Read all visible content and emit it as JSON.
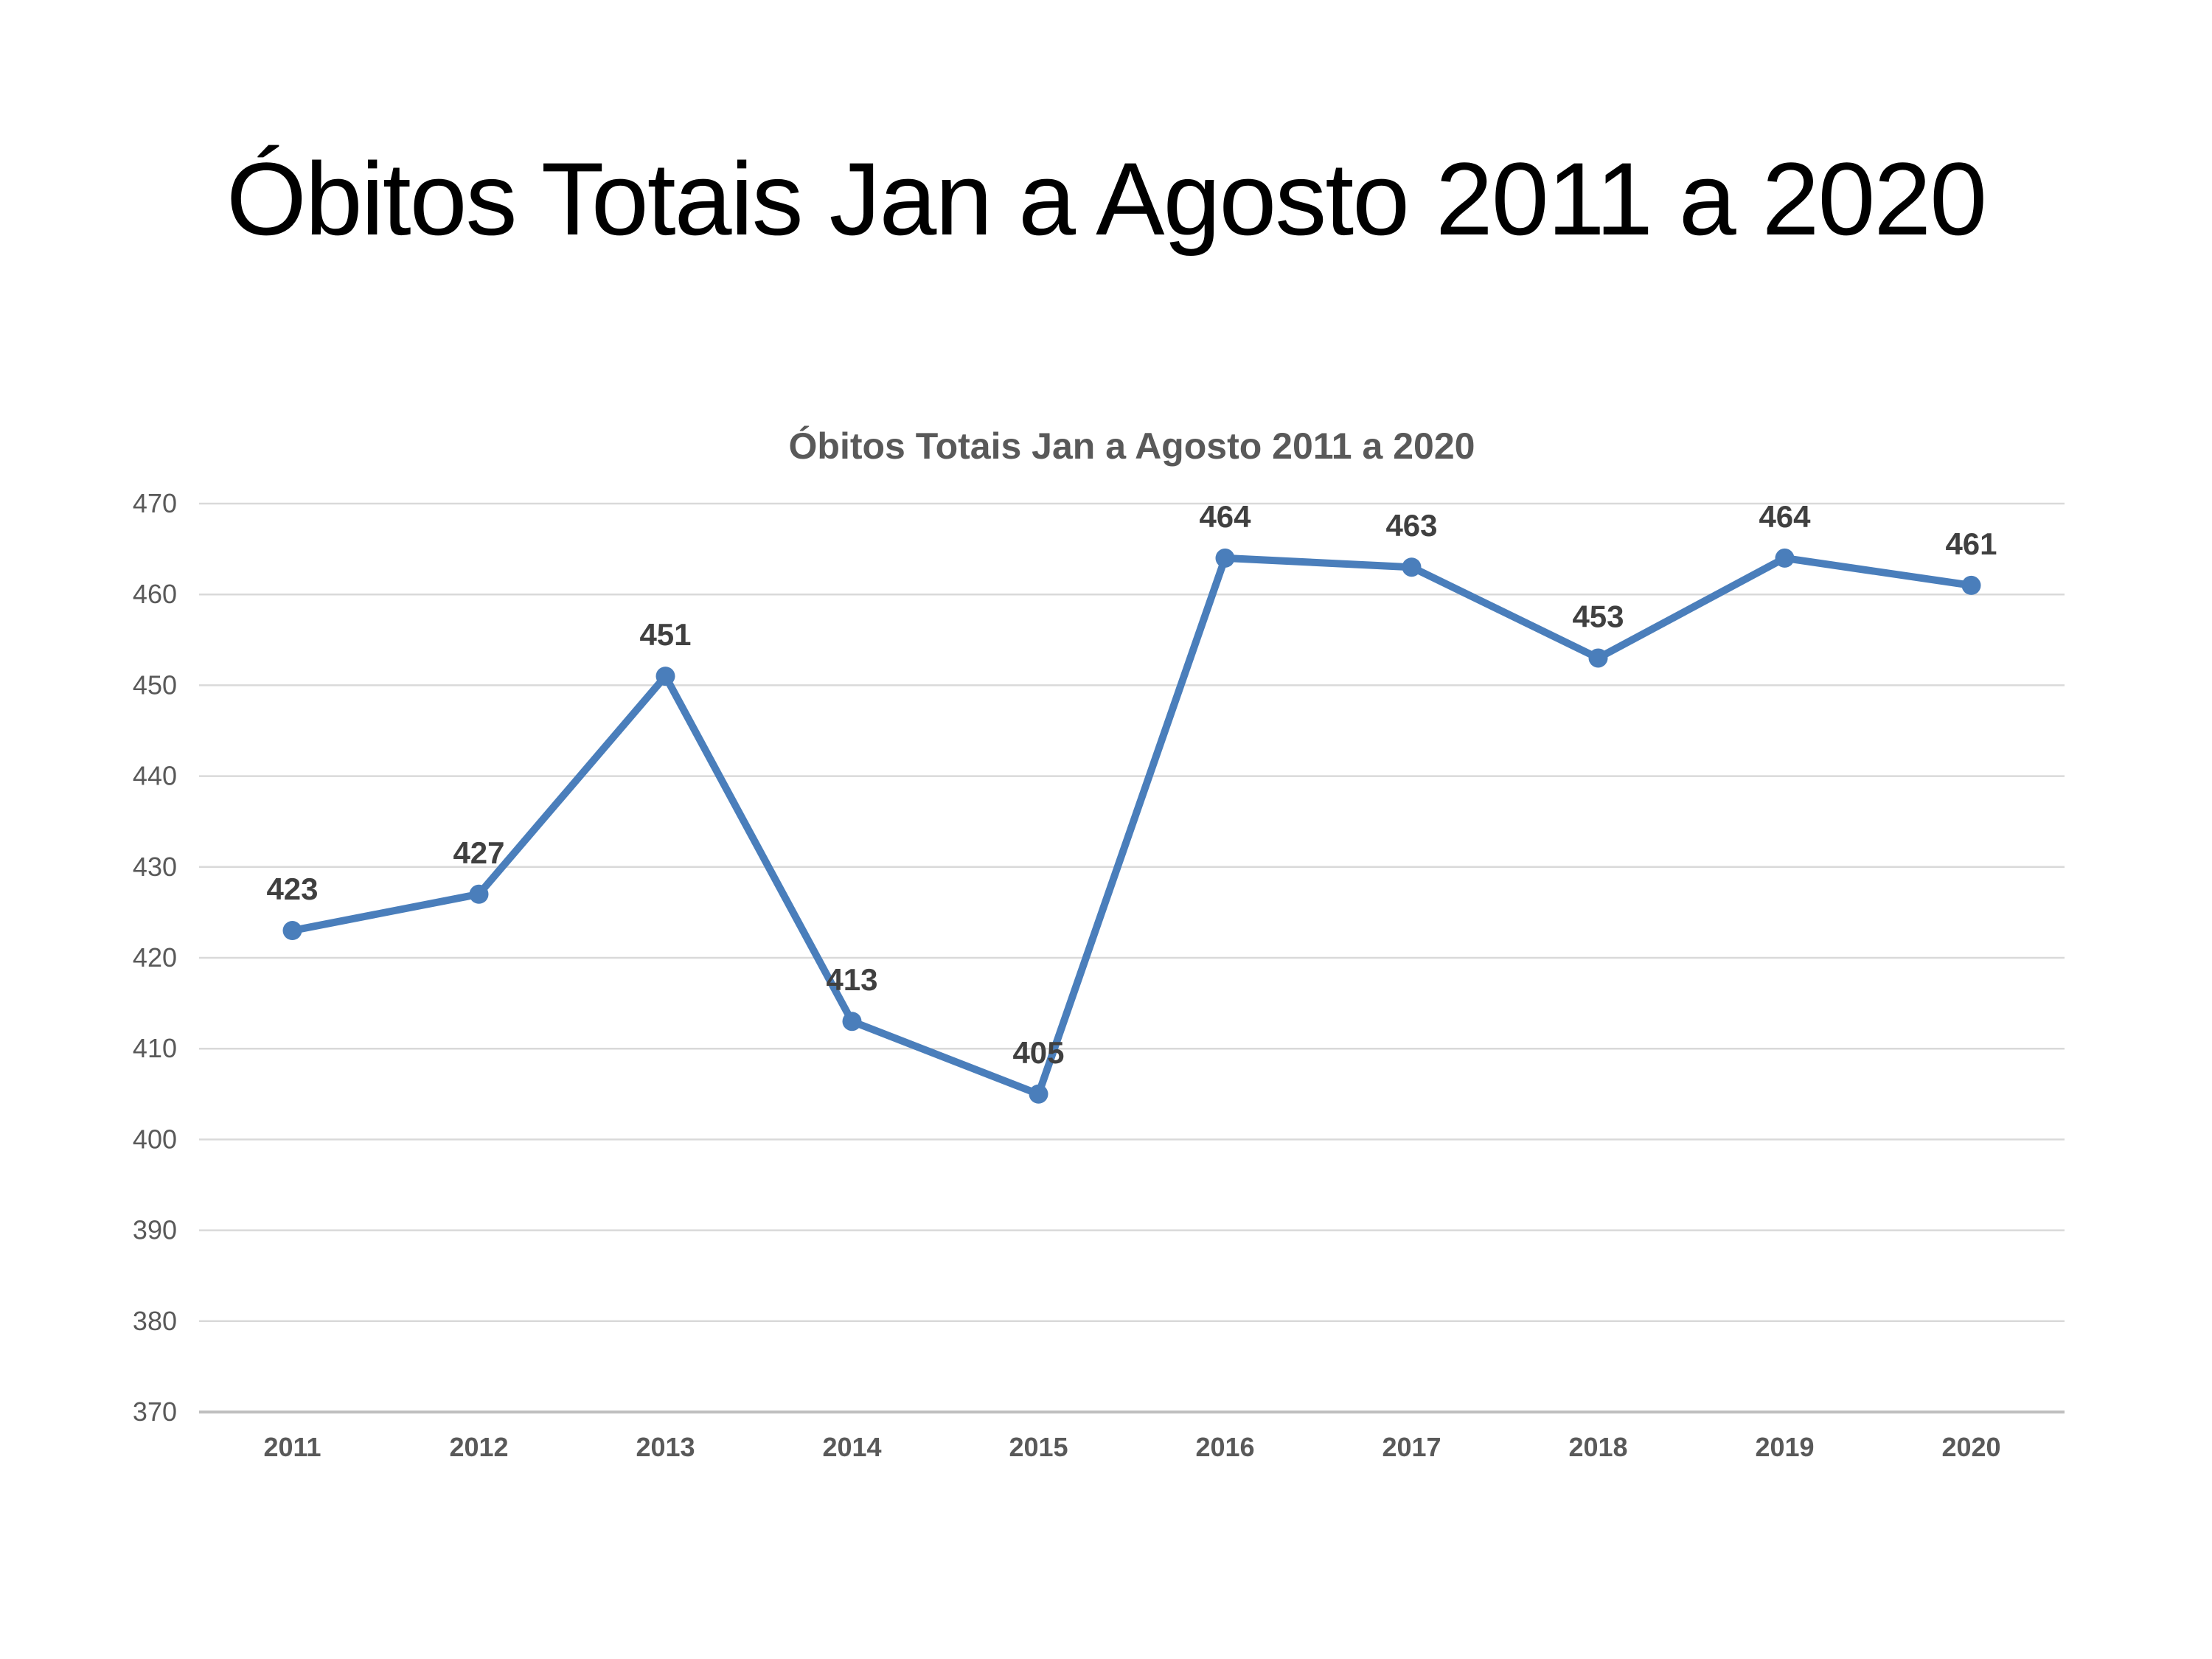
{
  "slide": {
    "title": "Óbitos Totais Jan a Agosto 2011 a 2020"
  },
  "chart_data": {
    "type": "line",
    "title": "Óbitos Totais Jan a Agosto 2011 a 2020",
    "categories": [
      "2011",
      "2012",
      "2013",
      "2014",
      "2015",
      "2016",
      "2017",
      "2018",
      "2019",
      "2020"
    ],
    "values": [
      423,
      427,
      451,
      413,
      405,
      464,
      463,
      453,
      464,
      461
    ],
    "data_labels": [
      "423",
      "427",
      "451",
      "413",
      "405",
      "464",
      "463",
      "453",
      "464",
      "461"
    ],
    "xlabel": "",
    "ylabel": "",
    "ylim": [
      370,
      470
    ],
    "yticks": [
      370,
      380,
      390,
      400,
      410,
      420,
      430,
      440,
      450,
      460,
      470
    ],
    "grid": "horizontal",
    "legend": "none",
    "colors": {
      "line": "#4A7EBB",
      "marker": "#4A7EBB",
      "data_label": "#404040",
      "tick_label": "#595959",
      "title": "#595959",
      "gridline": "#D9D9D9",
      "axis_line": "#BFBFBF"
    }
  }
}
